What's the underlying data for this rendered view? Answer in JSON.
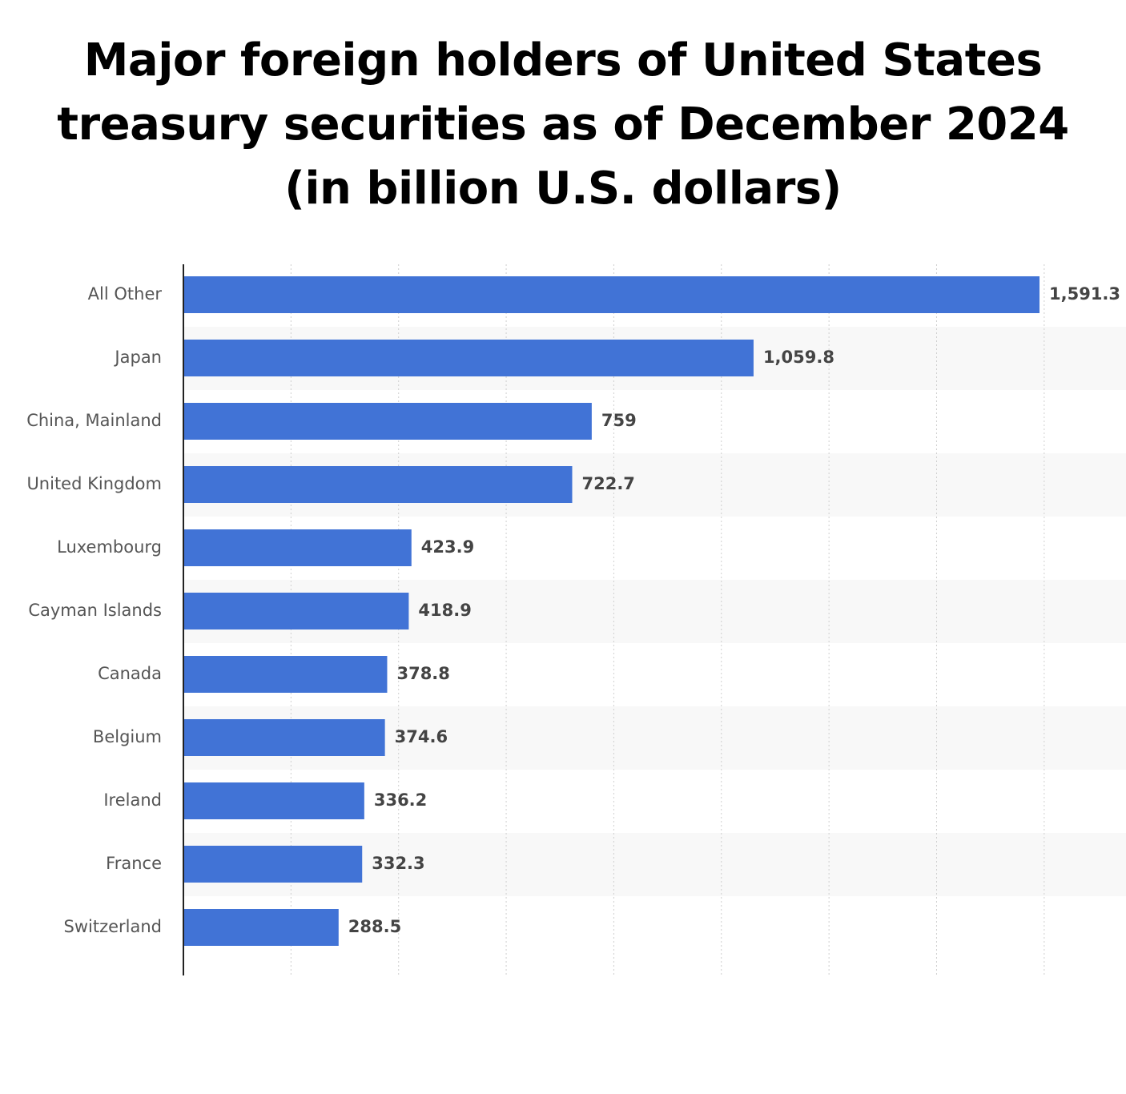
{
  "chart_data": {
    "type": "bar",
    "orientation": "horizontal",
    "title": "Major foreign holders of United States treasury securities as of December 2024 (in billion U.S. dollars)",
    "title_lines": [
      "Major foreign holders of United States",
      "treasury securities as of December 2024",
      "(in billion U.S. dollars)"
    ],
    "categories": [
      "All Other",
      "Japan",
      "China, Mainland",
      "United Kingdom",
      "Luxembourg",
      "Cayman Islands",
      "Canada",
      "Belgium",
      "Ireland",
      "France",
      "Switzerland"
    ],
    "values": [
      1591.3,
      1059.8,
      759,
      722.7,
      423.9,
      418.9,
      378.8,
      374.6,
      336.2,
      332.3,
      288.5
    ],
    "value_labels": [
      "1,591.3",
      "1,059.8",
      "759",
      "722.7",
      "423.9",
      "418.9",
      "378.8",
      "374.6",
      "336.2",
      "332.3",
      "288.5"
    ],
    "xlim": [
      0,
      1750
    ],
    "grid_step": 200,
    "grid": true,
    "legend": "none",
    "xlabel": "",
    "ylabel": "",
    "colors": {
      "bar": "#4173d6",
      "band": "#f8f8f8",
      "grid": "#cfcfcf",
      "axis": "#222222"
    }
  }
}
